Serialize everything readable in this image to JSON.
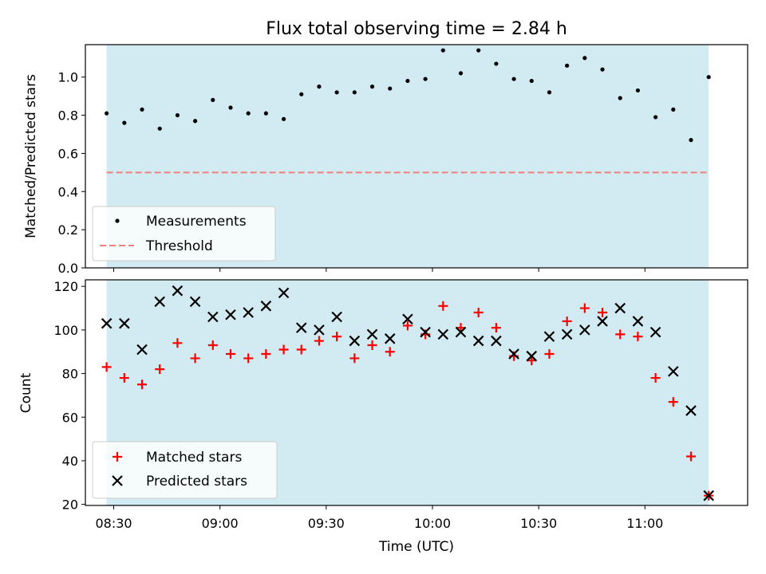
{
  "chart_data": [
    {
      "type": "scatter",
      "title": "Flux total observing time = 2.84 h",
      "ylabel": "Matched/Predicted stars",
      "xlabel": "",
      "ylim": [
        0,
        1.17
      ],
      "xlim": [
        "08:22",
        "11:29"
      ],
      "yticks": [
        "0.0",
        "0.2",
        "0.4",
        "0.6",
        "0.8",
        "1.0"
      ],
      "xticks_labeled": false,
      "observing_window": {
        "start": "08:28",
        "end": "11:18",
        "color": "#add8e6"
      },
      "legend": {
        "placement": "lower-left",
        "entries": [
          "Measurements",
          "Threshold"
        ]
      },
      "threshold": {
        "name": "Threshold",
        "value": 0.5,
        "color": "#f08080",
        "style": "dashed"
      },
      "series": [
        {
          "name": "Measurements",
          "marker": "dot",
          "color": "#000000",
          "x": [
            "08:28",
            "08:33",
            "08:38",
            "08:43",
            "08:48",
            "08:53",
            "08:58",
            "09:03",
            "09:08",
            "09:13",
            "09:18",
            "09:23",
            "09:28",
            "09:33",
            "09:38",
            "09:43",
            "09:48",
            "09:53",
            "09:58",
            "10:03",
            "10:08",
            "10:13",
            "10:18",
            "10:23",
            "10:28",
            "10:33",
            "10:38",
            "10:43",
            "10:48",
            "10:53",
            "10:58",
            "11:03",
            "11:08",
            "11:13",
            "11:18"
          ],
          "y": [
            0.81,
            0.76,
            0.83,
            0.73,
            0.8,
            0.77,
            0.88,
            0.84,
            0.81,
            0.81,
            0.78,
            0.91,
            0.95,
            0.92,
            0.92,
            0.95,
            0.94,
            0.98,
            0.99,
            1.14,
            1.02,
            1.14,
            1.07,
            0.99,
            0.98,
            0.92,
            1.06,
            1.1,
            1.04,
            0.89,
            0.93,
            0.79,
            0.83,
            0.67,
            1.0
          ]
        }
      ]
    },
    {
      "type": "scatter",
      "title": "",
      "ylabel": "Count",
      "xlabel": "Time (UTC)",
      "ylim": [
        19.5,
        123
      ],
      "xlim": [
        "08:22",
        "11:29"
      ],
      "yticks": [
        "20",
        "40",
        "60",
        "80",
        "100",
        "120"
      ],
      "xticks": [
        "08:30",
        "09:00",
        "09:30",
        "10:00",
        "10:30",
        "11:00"
      ],
      "observing_window": {
        "start": "08:28",
        "end": "11:18",
        "color": "#add8e6"
      },
      "legend": {
        "placement": "lower-left",
        "entries": [
          "Matched stars",
          "Predicted stars"
        ]
      },
      "series": [
        {
          "name": "Matched stars",
          "marker": "plus",
          "color": "#ff0000",
          "x": [
            "08:28",
            "08:33",
            "08:38",
            "08:43",
            "08:48",
            "08:53",
            "08:58",
            "09:03",
            "09:08",
            "09:13",
            "09:18",
            "09:23",
            "09:28",
            "09:33",
            "09:38",
            "09:43",
            "09:48",
            "09:53",
            "09:58",
            "10:03",
            "10:08",
            "10:13",
            "10:18",
            "10:23",
            "10:28",
            "10:33",
            "10:38",
            "10:43",
            "10:48",
            "10:53",
            "10:58",
            "11:03",
            "11:08",
            "11:13",
            "11:18"
          ],
          "y": [
            83,
            78,
            75,
            82,
            94,
            87,
            93,
            89,
            87,
            89,
            91,
            91,
            95,
            97,
            87,
            93,
            90,
            102,
            98,
            111,
            101,
            108,
            101,
            88,
            86,
            89,
            104,
            110,
            108,
            98,
            97,
            78,
            67,
            42,
            24
          ]
        },
        {
          "name": "Predicted stars",
          "marker": "x",
          "color": "#000000",
          "x": [
            "08:28",
            "08:33",
            "08:38",
            "08:43",
            "08:48",
            "08:53",
            "08:58",
            "09:03",
            "09:08",
            "09:13",
            "09:18",
            "09:23",
            "09:28",
            "09:33",
            "09:38",
            "09:43",
            "09:48",
            "09:53",
            "09:58",
            "10:03",
            "10:08",
            "10:13",
            "10:18",
            "10:23",
            "10:28",
            "10:33",
            "10:38",
            "10:43",
            "10:48",
            "10:53",
            "10:58",
            "11:03",
            "11:08",
            "11:13",
            "11:18"
          ],
          "y": [
            103,
            103,
            91,
            113,
            118,
            113,
            106,
            107,
            108,
            111,
            117,
            101,
            100,
            106,
            95,
            98,
            96,
            105,
            99,
            98,
            99,
            95,
            95,
            89,
            88,
            97,
            98,
            100,
            104,
            110,
            104,
            99,
            81,
            63,
            24
          ]
        }
      ]
    }
  ]
}
